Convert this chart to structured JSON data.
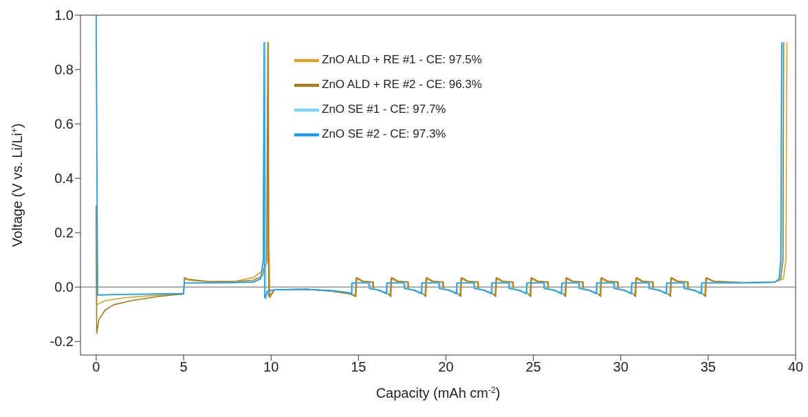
{
  "chart_data": {
    "type": "line",
    "xlabel": "Capacity (mAh cm$^{-2}$)",
    "ylabel": "Voltage (V vs. Li/Li$^{+}$)",
    "xlim": [
      -0.9,
      40
    ],
    "xticks": [
      0,
      5,
      10,
      15,
      20,
      25,
      30,
      35,
      40
    ],
    "ylim": [
      -0.25,
      1.0
    ],
    "yticks": [
      {
        "value": -0.2,
        "label": "-0.2"
      },
      {
        "value": 0,
        "label": "0.0"
      },
      {
        "value": 0.2,
        "label": "0.2"
      },
      {
        "value": 0.4,
        "label": "0.4"
      },
      {
        "value": 0.6,
        "label": "0.6"
      },
      {
        "value": 0.8,
        "label": "0.8"
      },
      {
        "value": 1.0,
        "label": "1.0"
      }
    ],
    "grid": false,
    "legend": "top",
    "marker": "none",
    "line_style": "solid",
    "ref_lines": [
      {
        "axis": "y",
        "value": 0,
        "color": "#808080"
      }
    ],
    "series": [
      {
        "name": "ZnO ALD + RE #1 - CE: 97.5%",
        "color": "#d9a12a",
        "x": [
          0,
          0.03,
          0.5,
          1.5,
          3,
          5,
          5.05,
          5.3,
          6.5,
          8,
          9,
          9.5,
          9.8,
          9.85,
          9.88,
          9.9,
          9.93,
          10.2,
          12,
          13.5,
          14.5,
          14.8,
          14.85,
          15.2,
          15.8,
          15.82,
          16.6,
          16.8,
          16.85,
          17.2,
          17.8,
          17.82,
          18.6,
          18.8,
          18.85,
          19.2,
          19.8,
          19.82,
          20.6,
          20.8,
          20.85,
          21.2,
          21.8,
          21.82,
          22.6,
          22.8,
          22.85,
          23.2,
          23.8,
          23.82,
          24.6,
          24.8,
          24.85,
          25.2,
          25.8,
          25.82,
          26.6,
          26.8,
          26.85,
          27.2,
          27.8,
          27.82,
          28.6,
          28.8,
          28.85,
          29.2,
          29.8,
          29.82,
          30.6,
          30.8,
          30.85,
          31.2,
          31.8,
          31.82,
          32.6,
          32.8,
          32.85,
          33.2,
          33.8,
          33.82,
          34.6,
          34.8,
          34.85,
          35.3,
          37,
          38.8,
          39.3,
          39.45,
          39.5
        ],
        "values": [
          0.3,
          -0.065,
          -0.05,
          -0.04,
          -0.032,
          -0.025,
          0.03,
          0.025,
          0.02,
          0.022,
          0.035,
          0.06,
          0.09,
          0.9,
          -0.03,
          0.12,
          -0.04,
          -0.01,
          -0.008,
          -0.015,
          -0.025,
          -0.03,
          0.032,
          0.02,
          0.018,
          -0.005,
          -0.02,
          -0.03,
          0.032,
          0.02,
          0.018,
          -0.005,
          -0.02,
          -0.03,
          0.032,
          0.02,
          0.018,
          -0.005,
          -0.02,
          -0.03,
          0.032,
          0.02,
          0.018,
          -0.005,
          -0.02,
          -0.03,
          0.032,
          0.02,
          0.018,
          -0.005,
          -0.02,
          -0.03,
          0.032,
          0.02,
          0.018,
          -0.005,
          -0.02,
          -0.03,
          0.032,
          0.02,
          0.018,
          -0.005,
          -0.02,
          -0.03,
          0.032,
          0.02,
          0.018,
          -0.005,
          -0.02,
          -0.03,
          0.032,
          0.02,
          0.018,
          -0.005,
          -0.02,
          -0.03,
          0.032,
          0.02,
          0.018,
          -0.005,
          -0.02,
          -0.03,
          0.032,
          0.02,
          0.016,
          0.018,
          0.03,
          0.1,
          0.9
        ]
      },
      {
        "name": "ZnO ALD + RE #2 - CE: 96.3%",
        "color": "#a07a1e",
        "x": [
          0,
          0.03,
          0.15,
          0.5,
          1,
          2,
          3.5,
          5,
          5.05,
          5.3,
          6.5,
          8,
          9,
          9.5,
          9.75,
          9.82,
          9.87,
          10.2,
          12,
          13.5,
          14.5,
          14.85,
          14.9,
          15.25,
          15.85,
          15.87,
          16.65,
          16.85,
          16.9,
          17.25,
          17.85,
          17.87,
          18.65,
          18.85,
          18.9,
          19.25,
          19.85,
          19.87,
          20.65,
          20.85,
          20.9,
          21.25,
          21.85,
          21.87,
          22.65,
          22.85,
          22.9,
          23.25,
          23.85,
          23.87,
          24.65,
          24.85,
          24.9,
          25.25,
          25.85,
          25.87,
          26.65,
          26.85,
          26.9,
          27.25,
          27.85,
          27.87,
          28.65,
          28.85,
          28.9,
          29.25,
          29.85,
          29.87,
          30.65,
          30.85,
          30.9,
          31.25,
          31.85,
          31.87,
          32.65,
          32.85,
          32.9,
          33.25,
          33.85,
          33.87,
          34.65,
          34.85,
          34.9,
          35.3,
          37,
          38.8,
          39.15,
          39.28,
          39.32
        ],
        "values": [
          0.3,
          -0.17,
          -0.12,
          -0.085,
          -0.065,
          -0.05,
          -0.035,
          -0.025,
          0.035,
          0.028,
          0.02,
          0.02,
          0.025,
          0.04,
          0.1,
          0.9,
          -0.035,
          -0.01,
          -0.008,
          -0.015,
          -0.025,
          -0.035,
          0.035,
          0.022,
          0.019,
          -0.006,
          -0.022,
          -0.035,
          0.035,
          0.022,
          0.019,
          -0.006,
          -0.022,
          -0.035,
          0.035,
          0.022,
          0.019,
          -0.006,
          -0.022,
          -0.035,
          0.035,
          0.022,
          0.019,
          -0.006,
          -0.022,
          -0.035,
          0.035,
          0.022,
          0.019,
          -0.006,
          -0.022,
          -0.035,
          0.035,
          0.022,
          0.019,
          -0.006,
          -0.022,
          -0.035,
          0.035,
          0.022,
          0.019,
          -0.006,
          -0.022,
          -0.035,
          0.035,
          0.022,
          0.019,
          -0.006,
          -0.022,
          -0.035,
          0.035,
          0.022,
          0.019,
          -0.006,
          -0.022,
          -0.035,
          0.035,
          0.022,
          0.019,
          -0.006,
          -0.022,
          -0.035,
          0.035,
          0.022,
          0.017,
          0.018,
          0.03,
          0.1,
          0.9
        ]
      },
      {
        "name": "ZnO SE #1 - CE: 97.7%",
        "color": "#7fd0fa",
        "x": [
          0,
          0.08,
          1,
          3,
          5,
          5.03,
          7,
          9,
          9.4,
          9.6,
          9.67,
          9.7,
          9.85,
          10.2,
          12,
          13.5,
          14.4,
          14.65,
          14.67,
          15.65,
          15.67,
          16.25,
          16.65,
          16.67,
          17.65,
          17.67,
          18.25,
          18.65,
          18.67,
          19.65,
          19.67,
          20.25,
          20.65,
          20.67,
          21.65,
          21.67,
          22.25,
          22.65,
          22.67,
          23.65,
          23.67,
          24.25,
          24.65,
          24.67,
          25.65,
          25.67,
          26.25,
          26.65,
          26.67,
          27.65,
          27.67,
          28.25,
          28.65,
          28.67,
          29.65,
          29.67,
          30.25,
          30.65,
          30.67,
          31.65,
          31.67,
          32.25,
          32.65,
          32.67,
          33.65,
          33.67,
          34.25,
          34.65,
          34.67,
          37,
          38.8,
          39.1,
          39.2,
          39.25
        ],
        "values": [
          1.0,
          -0.028,
          -0.027,
          -0.025,
          -0.023,
          0.016,
          0.016,
          0.019,
          0.03,
          0.1,
          0.9,
          -0.045,
          -0.015,
          -0.01,
          -0.008,
          -0.013,
          -0.02,
          -0.025,
          0.016,
          0.016,
          -0.004,
          -0.011,
          -0.024,
          0.016,
          0.016,
          -0.004,
          -0.011,
          -0.024,
          0.016,
          0.016,
          -0.004,
          -0.011,
          -0.024,
          0.016,
          0.016,
          -0.004,
          -0.011,
          -0.024,
          0.016,
          0.016,
          -0.004,
          -0.011,
          -0.024,
          0.016,
          0.016,
          -0.004,
          -0.011,
          -0.024,
          0.016,
          0.016,
          -0.004,
          -0.011,
          -0.024,
          0.016,
          0.016,
          -0.004,
          -0.011,
          -0.024,
          0.016,
          0.016,
          -0.004,
          -0.011,
          -0.024,
          0.016,
          0.016,
          -0.004,
          -0.011,
          -0.024,
          0.016,
          0.016,
          0.018,
          0.03,
          0.1,
          0.9
        ]
      },
      {
        "name": "ZnO SE #2 - CE: 97.3%",
        "color": "#1e9be8",
        "x": [
          0,
          0.08,
          1,
          3,
          5,
          5.03,
          7,
          9,
          9.4,
          9.55,
          9.6,
          9.63,
          9.8,
          10.2,
          12,
          13.5,
          14.4,
          14.6,
          14.62,
          15.6,
          15.62,
          16.2,
          16.6,
          16.62,
          17.6,
          17.62,
          18.2,
          18.6,
          18.62,
          19.6,
          19.62,
          20.2,
          20.6,
          20.62,
          21.6,
          21.62,
          22.2,
          22.6,
          22.62,
          23.6,
          23.62,
          24.2,
          24.6,
          24.62,
          25.6,
          25.62,
          26.2,
          26.6,
          26.62,
          27.6,
          27.62,
          28.2,
          28.6,
          28.62,
          29.6,
          29.62,
          30.2,
          30.6,
          30.62,
          31.6,
          31.62,
          32.2,
          32.6,
          32.62,
          33.6,
          33.62,
          34.2,
          34.6,
          34.62,
          37,
          38.8,
          39.05,
          39.15,
          39.2
        ],
        "values": [
          1.0,
          -0.03,
          -0.028,
          -0.026,
          -0.024,
          0.015,
          0.015,
          0.018,
          0.03,
          0.1,
          0.9,
          -0.04,
          -0.015,
          -0.01,
          -0.008,
          -0.013,
          -0.02,
          -0.025,
          0.015,
          0.015,
          -0.005,
          -0.012,
          -0.025,
          0.015,
          0.015,
          -0.005,
          -0.012,
          -0.025,
          0.015,
          0.015,
          -0.005,
          -0.012,
          -0.025,
          0.015,
          0.015,
          -0.005,
          -0.012,
          -0.025,
          0.015,
          0.015,
          -0.005,
          -0.012,
          -0.025,
          0.015,
          0.015,
          -0.005,
          -0.012,
          -0.025,
          0.015,
          0.015,
          -0.005,
          -0.012,
          -0.025,
          0.015,
          0.015,
          -0.005,
          -0.012,
          -0.025,
          0.015,
          0.015,
          -0.005,
          -0.012,
          -0.025,
          0.015,
          0.015,
          -0.005,
          -0.012,
          -0.025,
          0.015,
          0.015,
          0.018,
          0.03,
          0.1,
          0.9
        ]
      }
    ]
  }
}
